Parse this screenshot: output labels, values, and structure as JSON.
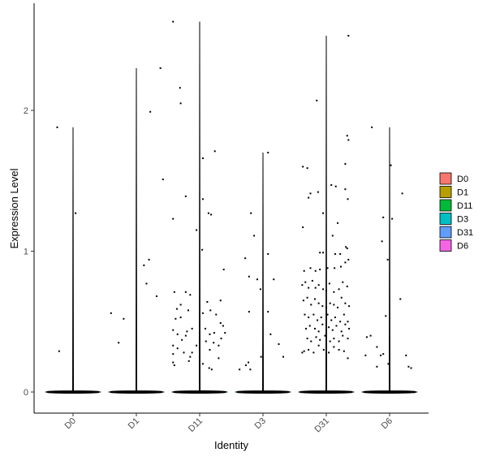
{
  "chart_data": {
    "type": "violin",
    "xlabel": "Identity",
    "ylabel": "Expression Level",
    "ylim": [
      -0.15,
      2.75
    ],
    "yticks": [
      0,
      1,
      2
    ],
    "grid": false,
    "legend_position": "right",
    "categories": [
      "D0",
      "D1",
      "D11",
      "D3",
      "D31",
      "D6"
    ],
    "colors": [
      "#F8766D",
      "#B79F00",
      "#00BA38",
      "#00BFC4",
      "#619CFF",
      "#F564E3"
    ],
    "max_values": [
      1.88,
      2.3,
      2.63,
      1.7,
      2.53,
      1.88
    ],
    "points": [
      [
        [
          -0.25,
          1.88
        ],
        [
          0.04,
          1.27
        ],
        [
          -0.22,
          0.29
        ]
      ],
      [
        [
          0.38,
          2.3
        ],
        [
          0.22,
          1.99
        ],
        [
          0.42,
          1.51
        ],
        [
          0.2,
          0.94
        ],
        [
          0.12,
          0.9
        ],
        [
          0.16,
          0.77
        ],
        [
          0.32,
          0.68
        ],
        [
          -0.4,
          0.56
        ],
        [
          -0.2,
          0.52
        ],
        [
          -0.28,
          0.35
        ]
      ],
      [
        [
          -0.42,
          2.63
        ],
        [
          -0.31,
          2.16
        ],
        [
          -0.3,
          2.05
        ],
        [
          0.05,
          1.66
        ],
        [
          0.24,
          1.71
        ],
        [
          -0.22,
          1.39
        ],
        [
          0.05,
          1.37
        ],
        [
          -0.42,
          1.23
        ],
        [
          0.14,
          1.27
        ],
        [
          0.18,
          1.26
        ],
        [
          -0.05,
          1.15
        ],
        [
          0.04,
          1.01
        ],
        [
          0.38,
          0.87
        ],
        [
          -0.4,
          0.71
        ],
        [
          -0.22,
          0.71
        ],
        [
          -0.15,
          0.69
        ],
        [
          0.33,
          0.65
        ],
        [
          0.12,
          0.64
        ],
        [
          -0.36,
          0.59
        ],
        [
          -0.3,
          0.62
        ],
        [
          -0.38,
          0.52
        ],
        [
          -0.3,
          0.53
        ],
        [
          0.05,
          0.56
        ],
        [
          0.17,
          0.58
        ],
        [
          -0.18,
          0.58
        ],
        [
          0.26,
          0.55
        ],
        [
          0.33,
          0.49
        ],
        [
          -0.42,
          0.44
        ],
        [
          -0.35,
          0.41
        ],
        [
          -0.28,
          0.37
        ],
        [
          -0.2,
          0.43
        ],
        [
          -0.12,
          0.45
        ],
        [
          0.09,
          0.45
        ],
        [
          0.16,
          0.41
        ],
        [
          0.23,
          0.42
        ],
        [
          0.4,
          0.42
        ],
        [
          0.37,
          0.47
        ],
        [
          -0.42,
          0.33
        ],
        [
          -0.35,
          0.31
        ],
        [
          -0.25,
          0.28
        ],
        [
          -0.15,
          0.25
        ],
        [
          0.1,
          0.36
        ],
        [
          0.16,
          0.3
        ],
        [
          0.22,
          0.35
        ],
        [
          0.3,
          0.33
        ],
        [
          0.34,
          0.38
        ],
        [
          -0.42,
          0.27
        ],
        [
          -0.42,
          0.21
        ],
        [
          -0.17,
          0.22
        ],
        [
          -0.12,
          0.28
        ],
        [
          0.05,
          0.2
        ],
        [
          0.15,
          0.17
        ],
        [
          0.19,
          0.16
        ],
        [
          0.3,
          0.24
        ],
        [
          -0.4,
          0.19
        ],
        [
          -0.05,
          0.33
        ],
        [
          -0.22,
          0.4
        ]
      ],
      [
        [
          0.08,
          1.7
        ],
        [
          -0.19,
          1.27
        ],
        [
          -0.14,
          1.11
        ],
        [
          -0.28,
          0.95
        ],
        [
          -0.09,
          0.8
        ],
        [
          0.08,
          0.98
        ],
        [
          0.17,
          0.8
        ],
        [
          -0.04,
          0.73
        ],
        [
          0.08,
          0.57
        ],
        [
          -0.22,
          0.57
        ],
        [
          -0.22,
          0.82
        ],
        [
          0.12,
          0.41
        ],
        [
          0.25,
          0.34
        ],
        [
          0.32,
          0.25
        ],
        [
          -0.03,
          0.25
        ],
        [
          -0.23,
          0.21
        ],
        [
          -0.27,
          0.19
        ],
        [
          -0.37,
          0.16
        ],
        [
          -0.2,
          0.16
        ]
      ],
      [
        [
          0.35,
          2.53
        ],
        [
          -0.15,
          2.07
        ],
        [
          0.33,
          1.82
        ],
        [
          0.35,
          1.79
        ],
        [
          -0.37,
          1.6
        ],
        [
          -0.3,
          1.59
        ],
        [
          0.3,
          1.62
        ],
        [
          -0.28,
          1.38
        ],
        [
          -0.25,
          1.41
        ],
        [
          -0.13,
          1.42
        ],
        [
          0.08,
          1.47
        ],
        [
          0.15,
          1.46
        ],
        [
          0.34,
          1.37
        ],
        [
          0.3,
          1.44
        ],
        [
          0.18,
          1.2
        ],
        [
          -0.37,
          1.17
        ],
        [
          0.1,
          1.11
        ],
        [
          -0.05,
          1.27
        ],
        [
          0.31,
          1.03
        ],
        [
          0.33,
          1.02
        ],
        [
          0.22,
          0.98
        ],
        [
          0.14,
          0.98
        ],
        [
          -0.05,
          0.99
        ],
        [
          -0.1,
          0.99
        ],
        [
          -0.35,
          0.86
        ],
        [
          -0.25,
          0.88
        ],
        [
          -0.17,
          0.86
        ],
        [
          -0.1,
          0.87
        ],
        [
          0.02,
          0.88
        ],
        [
          0.13,
          0.88
        ],
        [
          0.23,
          0.89
        ],
        [
          0.3,
          0.92
        ],
        [
          0.35,
          0.94
        ],
        [
          -0.38,
          0.76
        ],
        [
          -0.33,
          0.78
        ],
        [
          -0.28,
          0.74
        ],
        [
          -0.22,
          0.79
        ],
        [
          -0.17,
          0.74
        ],
        [
          -0.12,
          0.76
        ],
        [
          -0.05,
          0.73
        ],
        [
          0.0,
          0.72
        ],
        [
          0.05,
          0.77
        ],
        [
          0.12,
          0.71
        ],
        [
          0.2,
          0.73
        ],
        [
          0.26,
          0.78
        ],
        [
          0.33,
          0.75
        ],
        [
          -0.36,
          0.65
        ],
        [
          -0.3,
          0.67
        ],
        [
          -0.24,
          0.62
        ],
        [
          -0.18,
          0.66
        ],
        [
          -0.12,
          0.63
        ],
        [
          -0.06,
          0.61
        ],
        [
          0.0,
          0.6
        ],
        [
          0.06,
          0.63
        ],
        [
          0.12,
          0.62
        ],
        [
          0.18,
          0.6
        ],
        [
          0.24,
          0.67
        ],
        [
          0.3,
          0.63
        ],
        [
          0.36,
          0.61
        ],
        [
          -0.34,
          0.55
        ],
        [
          -0.28,
          0.53
        ],
        [
          -0.2,
          0.55
        ],
        [
          -0.14,
          0.51
        ],
        [
          -0.08,
          0.53
        ],
        [
          0.02,
          0.55
        ],
        [
          0.08,
          0.51
        ],
        [
          0.14,
          0.53
        ],
        [
          0.22,
          0.5
        ],
        [
          0.28,
          0.55
        ],
        [
          0.34,
          0.5
        ],
        [
          -0.32,
          0.45
        ],
        [
          -0.26,
          0.47
        ],
        [
          -0.18,
          0.45
        ],
        [
          -0.12,
          0.43
        ],
        [
          -0.06,
          0.48
        ],
        [
          0.04,
          0.46
        ],
        [
          0.1,
          0.44
        ],
        [
          0.16,
          0.47
        ],
        [
          0.24,
          0.43
        ],
        [
          0.3,
          0.48
        ],
        [
          0.36,
          0.45
        ],
        [
          -0.3,
          0.38
        ],
        [
          -0.24,
          0.36
        ],
        [
          -0.16,
          0.39
        ],
        [
          -0.1,
          0.37
        ],
        [
          -0.02,
          0.4
        ],
        [
          0.06,
          0.36
        ],
        [
          0.12,
          0.38
        ],
        [
          0.2,
          0.36
        ],
        [
          0.26,
          0.4
        ],
        [
          0.34,
          0.38
        ],
        [
          -0.35,
          0.29
        ],
        [
          -0.28,
          0.3
        ],
        [
          -0.2,
          0.28
        ],
        [
          -0.12,
          0.33
        ],
        [
          -0.04,
          0.3
        ],
        [
          0.04,
          0.28
        ],
        [
          0.12,
          0.32
        ],
        [
          0.2,
          0.3
        ],
        [
          0.28,
          0.29
        ],
        [
          0.34,
          0.24
        ],
        [
          -0.38,
          0.28
        ]
      ],
      [
        [
          -0.28,
          1.88
        ],
        [
          0.02,
          1.61
        ],
        [
          0.2,
          1.41
        ],
        [
          -0.1,
          1.24
        ],
        [
          0.04,
          1.23
        ],
        [
          -0.12,
          1.07
        ],
        [
          -0.03,
          0.94
        ],
        [
          0.17,
          0.66
        ],
        [
          -0.06,
          0.54
        ],
        [
          -0.3,
          0.4
        ],
        [
          -0.36,
          0.39
        ],
        [
          -0.2,
          0.32
        ],
        [
          -0.38,
          0.26
        ],
        [
          -0.14,
          0.26
        ],
        [
          -0.1,
          0.27
        ],
        [
          0.26,
          0.26
        ],
        [
          -0.02,
          0.2
        ],
        [
          -0.2,
          0.18
        ],
        [
          0.3,
          0.18
        ],
        [
          0.34,
          0.17
        ]
      ]
    ]
  }
}
